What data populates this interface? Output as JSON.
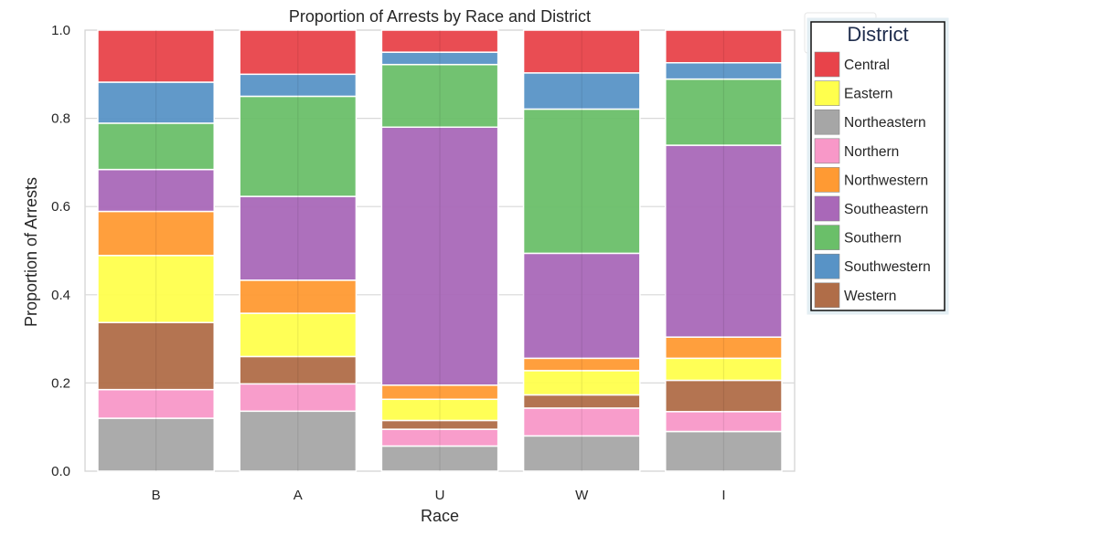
{
  "chart_data": {
    "type": "bar",
    "stacked": true,
    "title": "Proportion of Arrests by Race and District",
    "xlabel": "Race",
    "ylabel": "Proportion of Arrests",
    "ylim": [
      0,
      1.0
    ],
    "yticks": [
      "0.0",
      "0.2",
      "0.4",
      "0.6",
      "0.8",
      "1.0"
    ],
    "grid": true,
    "legend_title": "District",
    "legend_position": "outside-right",
    "categories": [
      "B",
      "A",
      "U",
      "W",
      "I"
    ],
    "series": [
      {
        "name": "Northeastern",
        "color": "#a6a6a6",
        "values": [
          0.12,
          0.136,
          0.057,
          0.08,
          0.09
        ]
      },
      {
        "name": "Northern",
        "color": "#f898c8",
        "values": [
          0.065,
          0.062,
          0.038,
          0.063,
          0.045
        ]
      },
      {
        "name": "Western",
        "color": "#b06d48",
        "values": [
          0.152,
          0.062,
          0.02,
          0.03,
          0.071
        ]
      },
      {
        "name": "Eastern",
        "color": "#ffff4d",
        "values": [
          0.152,
          0.098,
          0.048,
          0.055,
          0.05
        ]
      },
      {
        "name": "Northwestern",
        "color": "#ff9a33",
        "values": [
          0.1,
          0.075,
          0.032,
          0.028,
          0.048
        ]
      },
      {
        "name": "Southeastern",
        "color": "#a968b8",
        "values": [
          0.095,
          0.19,
          0.585,
          0.238,
          0.435
        ]
      },
      {
        "name": "Southern",
        "color": "#6abf69",
        "values": [
          0.105,
          0.227,
          0.142,
          0.327,
          0.15
        ]
      },
      {
        "name": "Southwestern",
        "color": "#5893c6",
        "values": [
          0.093,
          0.05,
          0.028,
          0.082,
          0.037
        ]
      },
      {
        "name": "Central",
        "color": "#e8434a",
        "values": [
          0.118,
          0.1,
          0.05,
          0.097,
          0.074
        ]
      }
    ],
    "legend_order": [
      "Central",
      "Eastern",
      "Northeastern",
      "Northern",
      "Northwestern",
      "Southeastern",
      "Southern",
      "Southwestern",
      "Western"
    ]
  }
}
